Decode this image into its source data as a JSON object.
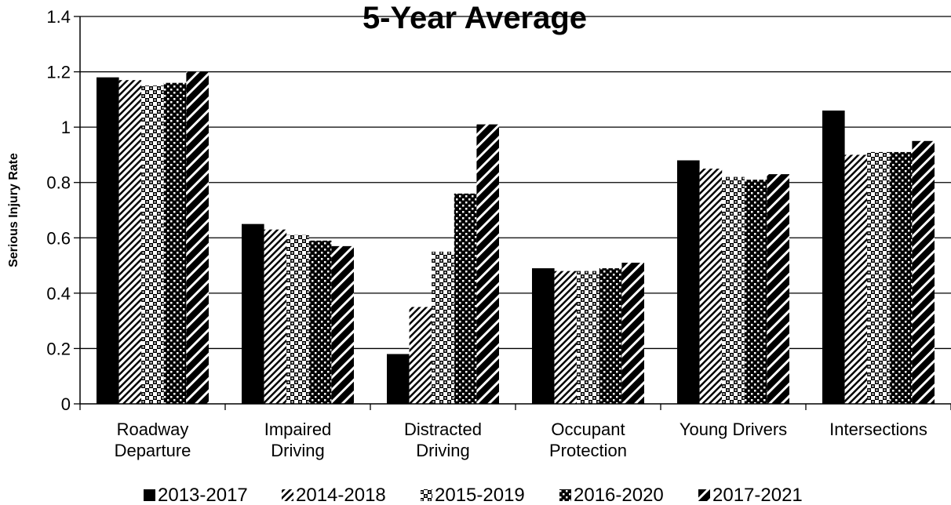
{
  "chart_data": {
    "type": "bar",
    "title": "5-Year Average",
    "xlabel": "",
    "ylabel": "Serious Injury Rate",
    "ylim": [
      0,
      1.4
    ],
    "yticks": [
      "0",
      "0.2",
      "0.4",
      "0.6",
      "0.8",
      "1",
      "1.2",
      "1.4"
    ],
    "categories": [
      [
        "Roadway",
        "Departure"
      ],
      [
        "Impaired",
        "Driving"
      ],
      [
        "Distracted",
        "Driving"
      ],
      [
        "Occupant",
        "Protection"
      ],
      [
        "Young Drivers"
      ],
      [
        "Intersections"
      ]
    ],
    "series": [
      {
        "name": "2013-2017",
        "pattern": "solid",
        "values": [
          1.18,
          0.65,
          0.18,
          0.49,
          0.88,
          1.06
        ]
      },
      {
        "name": "2014-2018",
        "pattern": "diagonal-thin",
        "values": [
          1.17,
          0.63,
          0.35,
          0.48,
          0.85,
          0.9
        ]
      },
      {
        "name": "2015-2019",
        "pattern": "checker-light",
        "values": [
          1.15,
          0.61,
          0.55,
          0.48,
          0.82,
          0.91
        ]
      },
      {
        "name": "2016-2020",
        "pattern": "checker-dark",
        "values": [
          1.16,
          0.59,
          0.76,
          0.49,
          0.81,
          0.91
        ]
      },
      {
        "name": "2017-2021",
        "pattern": "diagonal-thick",
        "values": [
          1.2,
          0.57,
          1.01,
          0.51,
          0.83,
          0.95
        ]
      }
    ],
    "grid": true,
    "legend_position": "bottom"
  }
}
